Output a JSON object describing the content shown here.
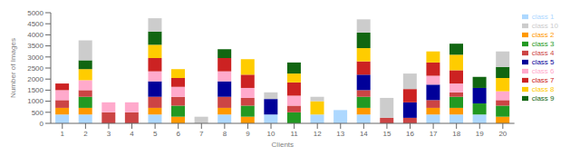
{
  "chart_data": {
    "type": "bar",
    "stacked": true,
    "xlabel": "Clients",
    "ylabel": "Number of Images",
    "categories": [
      "1",
      "2",
      "3",
      "4",
      "5",
      "6",
      "7",
      "8",
      "9",
      "10",
      "11",
      "12",
      "13",
      "14",
      "15",
      "16",
      "17",
      "18",
      "19",
      "20"
    ],
    "series": [
      {
        "name": "class 1",
        "color": "#add8ff",
        "values": [
          400,
          400,
          0,
          0,
          400,
          0,
          0,
          400,
          0,
          400,
          0,
          400,
          600,
          400,
          0,
          0,
          400,
          400,
          400,
          0
        ]
      },
      {
        "name": "class 2",
        "color": "#ff9900",
        "values": [
          300,
          300,
          0,
          0,
          300,
          300,
          0,
          300,
          300,
          0,
          0,
          0,
          0,
          300,
          0,
          0,
          300,
          300,
          0,
          300
        ]
      },
      {
        "name": "class 3",
        "color": "#229922",
        "values": [
          0,
          500,
          0,
          0,
          0,
          500,
          0,
          0,
          500,
          0,
          500,
          0,
          0,
          500,
          0,
          0,
          0,
          500,
          500,
          500
        ]
      },
      {
        "name": "class 4",
        "color": "#cc4444",
        "values": [
          350,
          300,
          500,
          500,
          500,
          400,
          0,
          500,
          350,
          0,
          300,
          0,
          0,
          300,
          250,
          250,
          350,
          200,
          0,
          250
        ]
      },
      {
        "name": "class 5",
        "color": "#000099",
        "values": [
          0,
          0,
          0,
          0,
          700,
          0,
          0,
          700,
          0,
          700,
          0,
          0,
          0,
          700,
          0,
          700,
          700,
          0,
          700,
          0
        ]
      },
      {
        "name": "class 6",
        "color": "#ffaacc",
        "values": [
          450,
          450,
          450,
          450,
          450,
          450,
          0,
          450,
          450,
          0,
          450,
          0,
          0,
          0,
          0,
          0,
          400,
          400,
          0,
          400
        ]
      },
      {
        "name": "class 7",
        "color": "#cc2222",
        "values": [
          300,
          0,
          0,
          0,
          600,
          400,
          0,
          600,
          600,
          0,
          600,
          0,
          0,
          600,
          0,
          600,
          600,
          600,
          0,
          0
        ]
      },
      {
        "name": "class 8",
        "color": "#ffcc00",
        "values": [
          0,
          500,
          0,
          0,
          600,
          400,
          0,
          0,
          700,
          0,
          400,
          600,
          0,
          600,
          0,
          0,
          500,
          700,
          0,
          600
        ]
      },
      {
        "name": "class 9",
        "color": "#116611",
        "values": [
          0,
          400,
          0,
          0,
          600,
          0,
          0,
          400,
          0,
          0,
          500,
          0,
          0,
          700,
          0,
          0,
          0,
          500,
          500,
          500
        ]
      },
      {
        "name": "class 10",
        "color": "#cccccc",
        "values": [
          0,
          900,
          0,
          0,
          600,
          0,
          300,
          0,
          0,
          300,
          0,
          200,
          0,
          600,
          900,
          700,
          0,
          0,
          0,
          700
        ]
      }
    ],
    "ylim": [
      0,
      5000
    ],
    "yticks": [
      0,
      500,
      1000,
      1500,
      2000,
      2500,
      3000,
      3500,
      4000,
      4500,
      5000
    ],
    "grid": false,
    "legend": "upper right"
  }
}
